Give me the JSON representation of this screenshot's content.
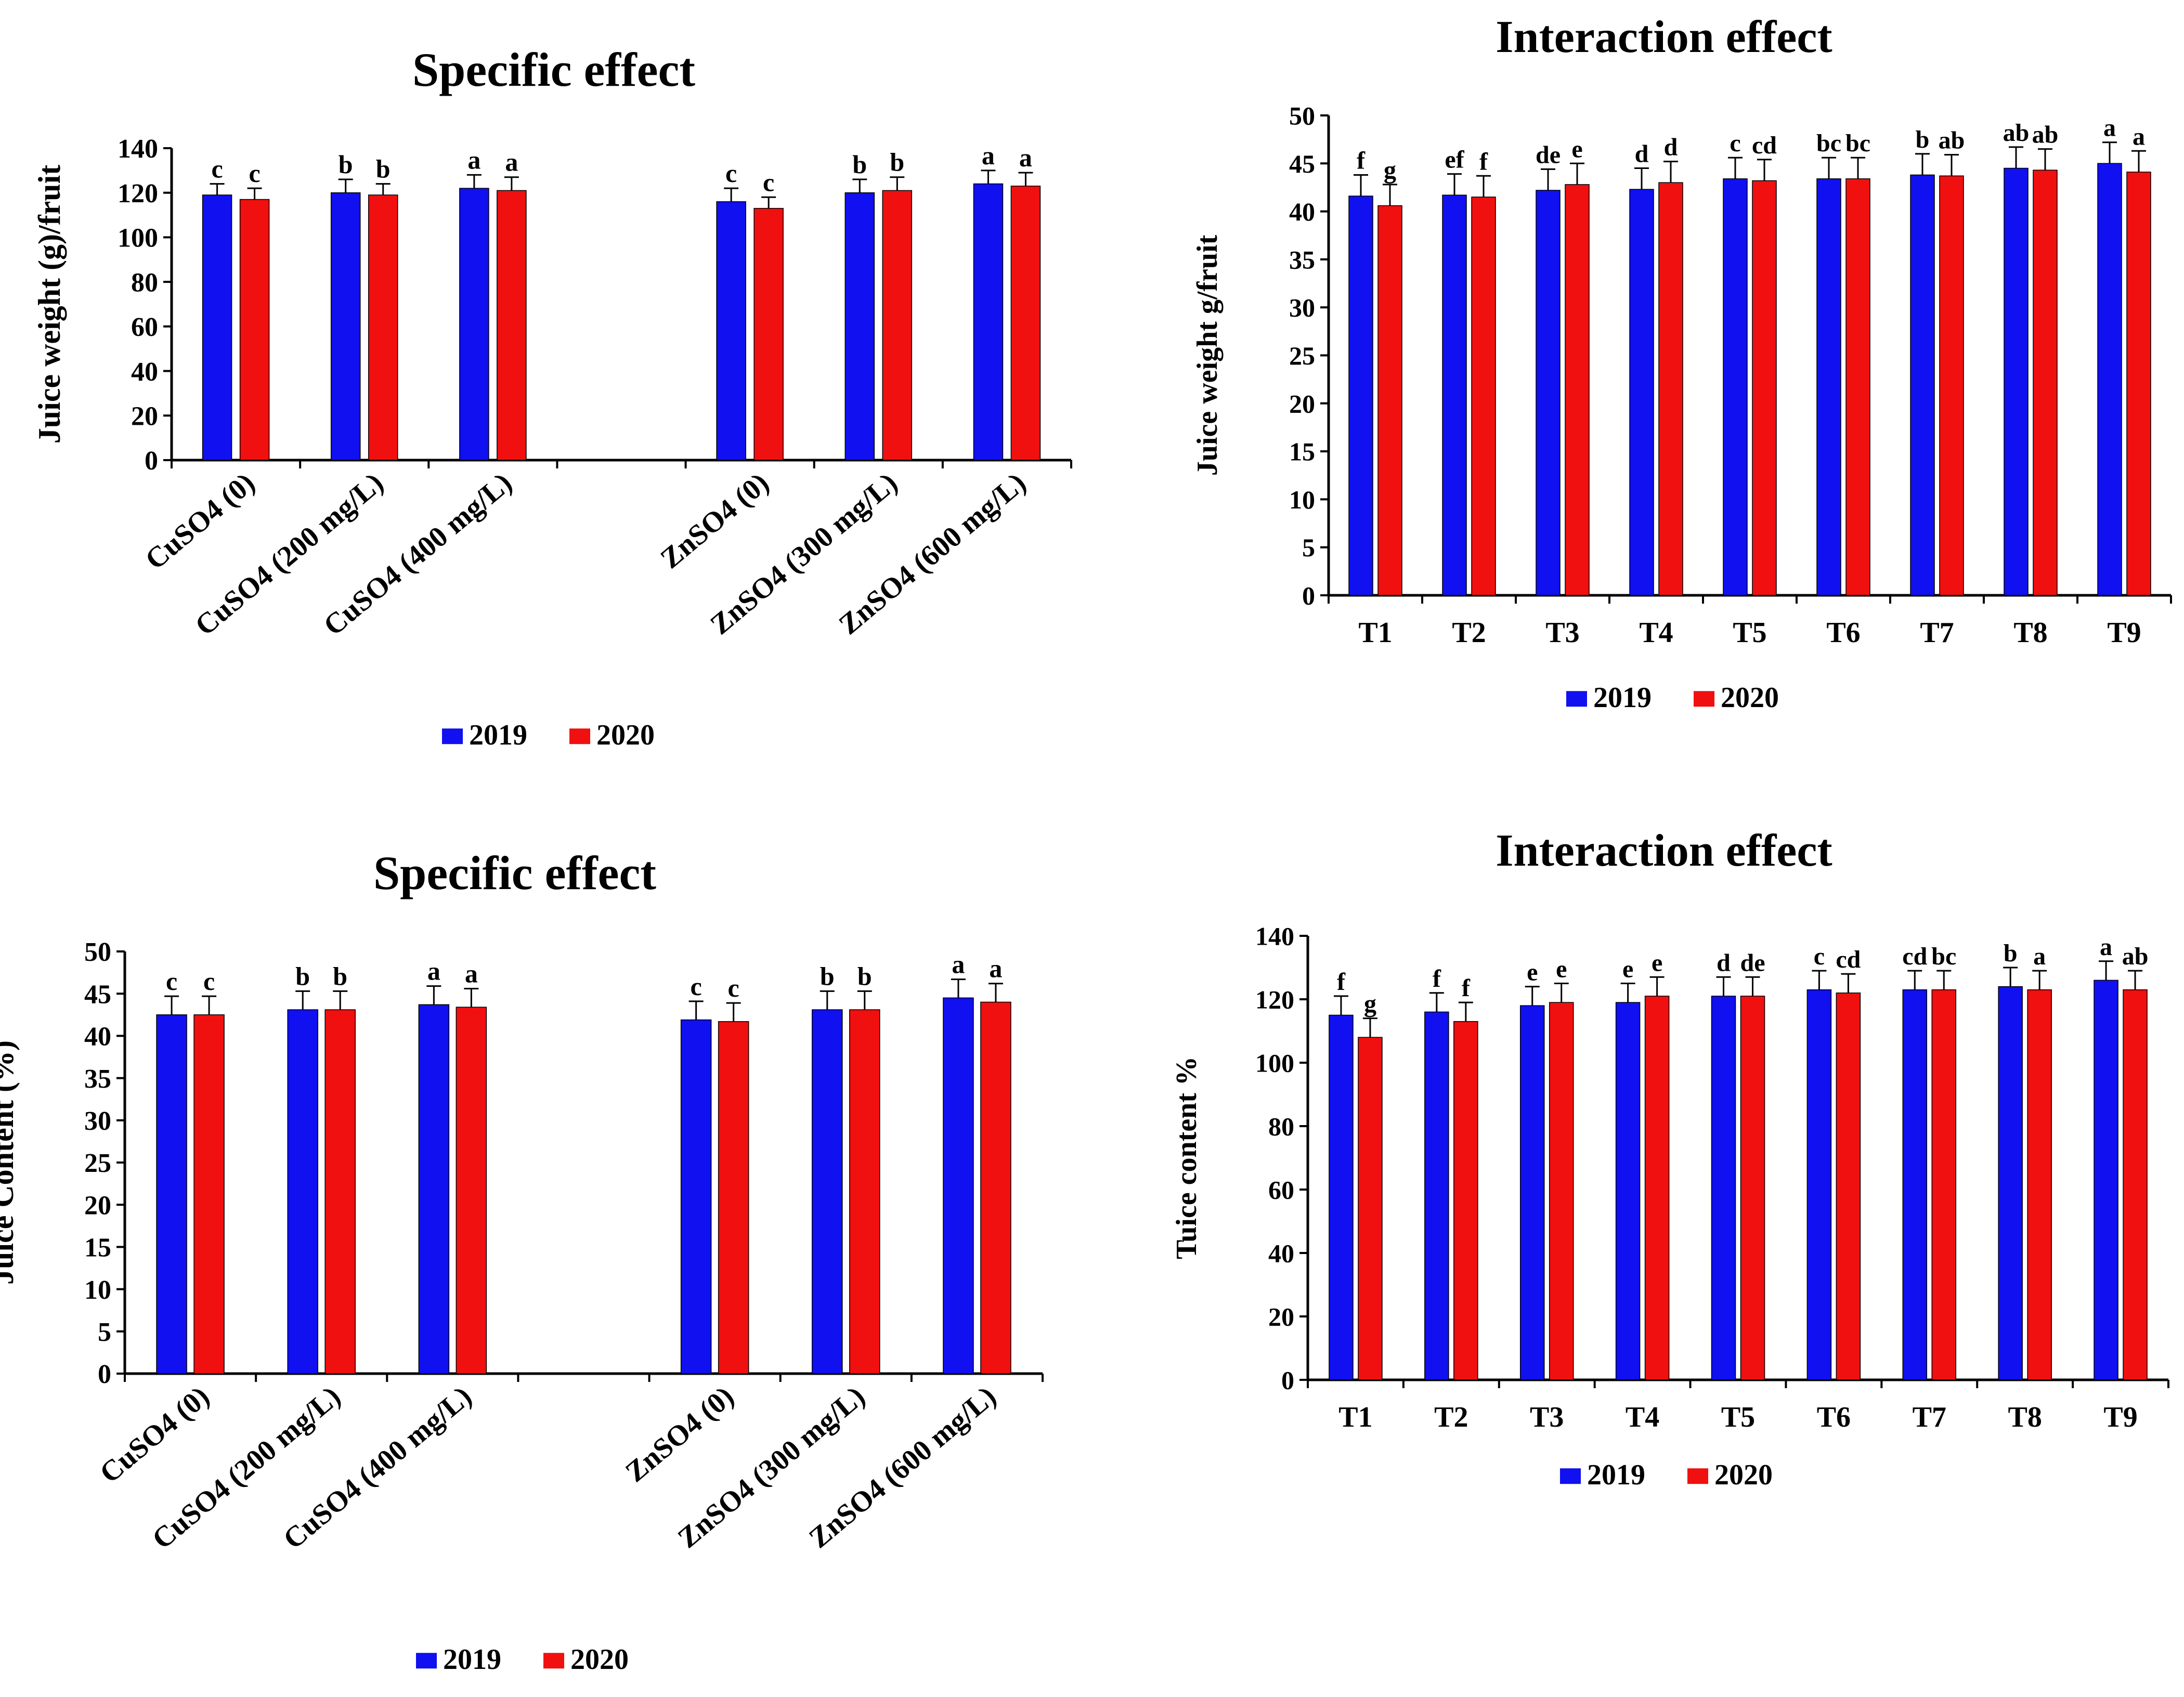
{
  "figure": "Juice weight and juice content: specific and interaction effects",
  "colors": {
    "y2019": "#1010F0",
    "y2020": "#F01010",
    "axis": "#000000"
  },
  "chart_data": [
    {
      "id": "p1",
      "type": "bar",
      "title": "Specific effect",
      "ylabel": "Juice weight (g)/fruit",
      "xlabel": "",
      "ylim": [
        0,
        140
      ],
      "yticks": [
        0,
        20,
        40,
        60,
        80,
        100,
        120,
        140
      ],
      "grid": false,
      "legend": "bottom-center",
      "categories": [
        "CuSO4 (0)",
        "CuSO4 (200 mg/L)",
        "CuSO4 (400 mg/L)",
        "",
        "ZnSO4 (0)",
        "ZnSO4 (300 mg/L)",
        "ZnSO4 (600 mg/L)"
      ],
      "series": [
        {
          "name": "2019",
          "values": [
            119,
            120,
            122,
            null,
            116,
            120,
            124
          ],
          "errors": [
            5,
            6,
            6,
            null,
            6,
            6,
            6
          ],
          "labels": [
            "c",
            "b",
            "a",
            "",
            "c",
            "b",
            "a"
          ]
        },
        {
          "name": "2020",
          "values": [
            117,
            119,
            121,
            null,
            113,
            121,
            123
          ],
          "errors": [
            5,
            5,
            6,
            null,
            5,
            6,
            6
          ],
          "labels": [
            "c",
            "b",
            "a",
            "",
            "c",
            "b",
            "a"
          ]
        }
      ]
    },
    {
      "id": "p2",
      "type": "bar",
      "title": "Interaction effect",
      "ylabel": "Juice weight g/fruit",
      "xlabel": "",
      "ylim": [
        0,
        50
      ],
      "yticks": [
        0,
        5,
        10,
        15,
        20,
        25,
        30,
        35,
        40,
        45,
        50
      ],
      "grid": false,
      "legend": "bottom-center",
      "categories": [
        "T1",
        "T2",
        "T3",
        "T4",
        "T5",
        "T6",
        "T7",
        "T8",
        "T9"
      ],
      "series": [
        {
          "name": "2019",
          "values": [
            41.6,
            41.7,
            42.2,
            42.3,
            43.4,
            43.4,
            43.8,
            44.5,
            45.0
          ],
          "errors": [
            2.2,
            2.2,
            2.2,
            2.2,
            2.2,
            2.2,
            2.2,
            2.2,
            2.2
          ],
          "labels": [
            "f",
            "ef",
            "de",
            "d",
            "c",
            "bc",
            "b",
            "ab",
            "a"
          ]
        },
        {
          "name": "2020",
          "values": [
            40.6,
            41.5,
            42.8,
            43.0,
            43.2,
            43.4,
            43.7,
            44.3,
            44.1
          ],
          "errors": [
            2.2,
            2.2,
            2.2,
            2.2,
            2.2,
            2.2,
            2.2,
            2.2,
            2.2
          ],
          "labels": [
            "g",
            "f",
            "e",
            "d",
            "cd",
            "bc",
            "ab",
            "ab",
            "a"
          ]
        }
      ]
    },
    {
      "id": "p3",
      "type": "bar",
      "title": "Specific effect",
      "ylabel": "Juice Content (%)",
      "xlabel": "",
      "ylim": [
        0,
        50
      ],
      "yticks": [
        0,
        5,
        10,
        15,
        20,
        25,
        30,
        35,
        40,
        45,
        50
      ],
      "grid": false,
      "legend": "bottom-center",
      "categories": [
        "CuSO4 (0)",
        "CuSO4 (200 mg/L)",
        "CuSO4 (400 mg/L)",
        "",
        "ZnSO4 (0)",
        "ZnSO4 (300 mg/L)",
        "ZnSO4 (600 mg/L)"
      ],
      "series": [
        {
          "name": "2019",
          "values": [
            42.5,
            43.1,
            43.7,
            null,
            41.9,
            43.1,
            44.5
          ],
          "errors": [
            2.2,
            2.2,
            2.2,
            null,
            2.2,
            2.2,
            2.2
          ],
          "labels": [
            "c",
            "b",
            "a",
            "",
            "c",
            "b",
            "a"
          ]
        },
        {
          "name": "2020",
          "values": [
            42.5,
            43.1,
            43.4,
            null,
            41.7,
            43.1,
            44.0
          ],
          "errors": [
            2.2,
            2.2,
            2.2,
            null,
            2.2,
            2.2,
            2.2
          ],
          "labels": [
            "c",
            "b",
            "a",
            "",
            "c",
            "b",
            "a"
          ]
        }
      ]
    },
    {
      "id": "p4",
      "type": "bar",
      "title": "Interaction effect",
      "ylabel": "Tuice content %",
      "xlabel": "",
      "ylim": [
        0,
        140
      ],
      "yticks": [
        0,
        20,
        40,
        60,
        80,
        100,
        120,
        140
      ],
      "grid": false,
      "legend": "bottom-center",
      "categories": [
        "T1",
        "T2",
        "T3",
        "T4",
        "T5",
        "T6",
        "T7",
        "T8",
        "T9"
      ],
      "series": [
        {
          "name": "2019",
          "values": [
            115,
            116,
            118,
            119,
            121,
            123,
            123,
            124,
            126
          ],
          "errors": [
            6,
            6,
            6,
            6,
            6,
            6,
            6,
            6,
            6
          ],
          "labels": [
            "f",
            "f",
            "e",
            "e",
            "d",
            "c",
            "cd",
            "b",
            "a"
          ]
        },
        {
          "name": "2020",
          "values": [
            108,
            113,
            119,
            121,
            121,
            122,
            123,
            123,
            123
          ],
          "errors": [
            6,
            6,
            6,
            6,
            6,
            6,
            6,
            6,
            6
          ],
          "labels": [
            "g",
            "f",
            "e",
            "e",
            "de",
            "cd",
            "bc",
            "a",
            "ab"
          ]
        }
      ]
    }
  ]
}
